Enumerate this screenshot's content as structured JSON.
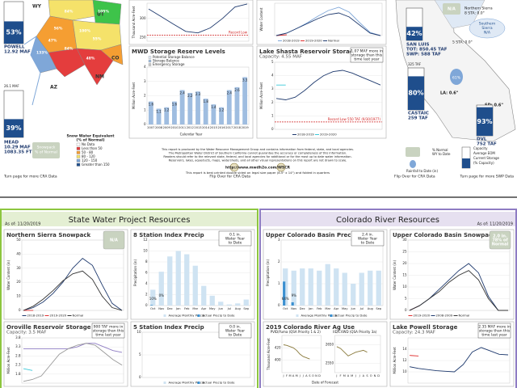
{
  "top": {
    "colorado": {
      "powell": {
        "pct": "53%",
        "name": "POWELL",
        "vol": "12.92 MAF"
      },
      "mead": {
        "cap": "26.1 MAF",
        "pct": "39%",
        "name": "MEAD",
        "vol": "10.29 MAF",
        "elev": "1083.35 FT"
      },
      "states": [
        "WY",
        "UT",
        "CO",
        "NM",
        "AZ"
      ],
      "basin_pcts": [
        "84%",
        "105%",
        "56%",
        "47%",
        "100%",
        "55%",
        "133%",
        "84%",
        "48%",
        "86%"
      ],
      "badge": [
        "Snowpack",
        "% of Normal"
      ],
      "legend_title": [
        "Snow Water Equivalent",
        "(% of Normal)"
      ],
      "legend_items": [
        "No Data",
        "Less than 50",
        "50 - 80",
        "80 - 120",
        "120 - 150",
        "Greater than 150"
      ],
      "footer": "Turn page for more CRA Data"
    },
    "panels": [
      {
        "ylabel": "Thousand Acre-Feet",
        "ylim": [
          240,
          340
        ],
        "yticks": [
          250,
          300
        ],
        "series": [
          {
            "color": "#1f3a6e",
            "values": [
              325,
              305,
              285,
              266,
              262,
              275,
              300,
              330,
              338
            ]
          }
        ],
        "record": {
          "label": "Record Low",
          "value": 256
        }
      },
      {
        "ylabel": "Water Content",
        "ylim": [
          0,
          40
        ],
        "series": [
          {
            "name": "2018-2019",
            "color": "#7fa7d8",
            "values": [
              0,
              3,
              9,
              16,
              24,
              31,
              35,
              29,
              16,
              4,
              0
            ]
          },
          {
            "name": "2019-2020",
            "color": "#e03030",
            "values": [
              0,
              1
            ]
          },
          {
            "name": "Normal",
            "color": "#1f3a6e",
            "values": [
              0,
              3,
              9,
              15,
              21,
              26,
              28,
              23,
              13,
              3,
              0
            ]
          }
        ]
      },
      {
        "title": "MWD Storage Reserve Levels",
        "legend_items": [
          {
            "name": "Potential Storage Balance",
            "color": "#e3ecf7"
          },
          {
            "name": "Storage Balance",
            "color": "#9fbde0"
          },
          {
            "name": "Emergency Storage",
            "color": "#c8c8c8"
          }
        ],
        "ylabel": "Million Acre-Feet",
        "xlabel": "Calendar Year",
        "ylim": [
          0,
          4
        ],
        "yticks": [
          0,
          1,
          2,
          3,
          4
        ],
        "categories": [
          "2007",
          "2008",
          "2009",
          "2010",
          "2011",
          "2012",
          "2013",
          "2014",
          "2015",
          "2016",
          "2017",
          "2018",
          "2019"
        ],
        "series": [
          {
            "kind": "bar",
            "color": "#9fbde0",
            "labels": true,
            "values": [
              1.6,
              1.1,
              1.2,
              1.6,
              2.4,
              2.2,
              2.3,
              1.8,
              1.4,
              1.2,
              2.4,
              2.6,
              3.3
            ]
          }
        ]
      },
      {
        "title": "Lake Shasta Reservoir Storage",
        "subtitle": "Capacity: 4.55 MAF",
        "note": [
          "1.07 MAF more in",
          "storage than this",
          "time last year"
        ],
        "ylabel": "Million Acre-Feet",
        "ylim": [
          0,
          5
        ],
        "yticks": [
          0,
          1,
          2,
          3,
          4,
          5
        ],
        "series": [
          {
            "name": "2018-2019",
            "color": "#1f3a6e",
            "values": [
              2.3,
              2.2,
              2.4,
              2.9,
              3.5,
              4.0,
              4.3,
              4.4,
              4.2,
              3.9,
              3.6,
              3.3
            ]
          },
          {
            "name": "2019-2020",
            "color": "#3cc8d8",
            "values": [
              3.3,
              3.3
            ]
          }
        ],
        "record": {
          "label": "Record Low 550 TAF (9/30/1977)",
          "value": 0.55
        }
      }
    ],
    "disclaimer_lines": [
      "This report is produced by the Water Resource Management Group and contains information from federal, state, and local agencies.",
      "The Metropolitan Water District of Southern California cannot guarantee the accuracy or completeness of this information.",
      "Readers should refer to the relevant state, federal, and local agencies for additional or for the most up to date water information.",
      "Reservoirs, lakes, aqueducts, maps, watersheds, and all other visual representations on this report are not drawn to scale."
    ],
    "url": "http://www.mwdh2o.com/WSCR",
    "print_note": "This report is best printed double sided on legal size paper (8.5\" x 14\") and folded in quarters",
    "flip_cra": "Flip Over for CRA Data",
    "california": {
      "nsierra": [
        "N/A",
        "Northern Sierra",
        "8 STA: 0.0\""
      ],
      "ssierra": [
        "Southern",
        "Sierra",
        "N/A",
        "5 STA: 0.0\""
      ],
      "sanluis": {
        "pct": "42%",
        "name": "SAN LUIS",
        "tot": "TOT: 850.45 TAF",
        "swp": "SWP: 588 TAF"
      },
      "castaic": {
        "cap": "325 TAF",
        "pct": "80%",
        "name": "CASTAIC",
        "vol": "259 TAF"
      },
      "dvl": {
        "pct": "93%",
        "name": "DVL",
        "vol": "752 TAF"
      },
      "la": "LA: 0.6\"",
      "sd": "SD: 0.6\"",
      "pct61": "61%",
      "legend": [
        "% Normal",
        "WY to Date",
        "Rainfall to Date (in)",
        "Capacity",
        "Average EOM",
        "Current Storage",
        "(% Capacity)"
      ],
      "flip_swp": "Flip Over for CRA Data",
      "footer": "Turn page for more SWP Data"
    }
  },
  "bottom": {
    "swp": {
      "title": "State Water Project Resources",
      "as_of": "As of: 11/20/2019",
      "panels": [
        {
          "title": "Northern Sierra Snowpack",
          "badge": [
            "N/A"
          ],
          "ylabel": "Water Content (in)",
          "ylim": [
            0,
            50
          ],
          "yticks": [
            0,
            10,
            20,
            30,
            40,
            50
          ],
          "series": [
            {
              "name": "2018-2019",
              "color": "#1f3a6e",
              "values": [
                0,
                2,
                6,
                12,
                20,
                30,
                37,
                32,
                18,
                5,
                0
              ]
            },
            {
              "name": "2019-2020",
              "color": "#e03030",
              "values": [
                0,
                0
              ]
            },
            {
              "name": "Normal",
              "color": "#333333",
              "values": [
                0,
                3,
                8,
                14,
                21,
                26,
                28,
                22,
                10,
                2,
                0
              ]
            }
          ]
        },
        {
          "title": "8 Station Index Precip",
          "note": [
            "0.1 in.",
            "Water Year",
            "to Date"
          ],
          "ylabel": "Precipitation (in)",
          "ylim": [
            0,
            12
          ],
          "yticks": [
            0,
            2,
            4,
            6,
            8,
            10,
            12
          ],
          "categories": [
            "Oct",
            "Nov",
            "Dec",
            "Jan",
            "Feb",
            "Mar",
            "Apr",
            "May",
            "Jun",
            "Jul",
            "Aug",
            "Sep"
          ],
          "pct_labels": [
            "10%",
            "0%"
          ],
          "series": [
            {
              "name": "Average Monthly Precip",
              "kind": "bar",
              "color": "#cfe3f2",
              "values": [
                2.9,
                6.2,
                9.0,
                10.0,
                9.4,
                7.3,
                3.6,
                1.8,
                0.7,
                0.2,
                0.4,
                1.1
              ]
            },
            {
              "name": "Actual Precip to Date",
              "kind": "bar",
              "color": "#3a8fd0",
              "values": [
                0.1,
                0
              ]
            }
          ]
        },
        {
          "title": "Oroville Reservoir Storage",
          "subtitle": "Capacity: 3.5 MAF",
          "note": [
            "900 TAF more in",
            "storage than this",
            "time last year"
          ],
          "ylabel": "Million Acre-Feet",
          "ylim": [
            1.3,
            3.8
          ],
          "yticks": [
            1.8,
            2.3,
            2.8,
            3.3,
            3.8
          ],
          "series": [
            {
              "color": "#8e7cc3",
              "values": [
                3.2,
                3.2,
                3.2,
                3.2,
                3.2,
                3.2,
                3.3,
                3.5,
                3.5,
                3.3,
                3.1,
                3.0
              ]
            },
            {
              "color": "#999999",
              "values": [
                1.4,
                1.5,
                1.7,
                2.3,
                2.9,
                3.2,
                3.4,
                3.5,
                3.4,
                3.0,
                2.6,
                2.3
              ]
            },
            {
              "color": "#3cc8d8",
              "values": [
                2.1,
                2.0
              ]
            }
          ]
        },
        {
          "title": "5 Station Index Precip",
          "note": [
            "0.0 in.",
            "Water Year",
            "to Date"
          ],
          "ylim": [
            0,
            10
          ],
          "yticks": [
            0,
            5,
            10
          ],
          "series": [
            {
              "name": "Average Monthly Precip",
              "kind": "bar",
              "color": "#cfe3f2",
              "values": [
                1.6,
                3.7,
                6.1,
                7.5,
                7.0,
                5.9,
                3.0,
                1.3,
                0.4,
                0.1,
                0.1,
                0.6
              ]
            },
            {
              "name": "Actual Precip to Date",
              "kind": "bar",
              "color": "#3a8fd0",
              "values": [
                0,
                0
              ]
            }
          ]
        }
      ]
    },
    "cra": {
      "title": "Colorado River Resources",
      "as_of": "As of: 11/20/2019",
      "panels": [
        {
          "title": "Upper Colorado Basin Precip",
          "note": [
            "2.4 in.",
            "Water Year",
            "to Date"
          ],
          "ylabel": "Precipitation (in)",
          "ylim": [
            0,
            3
          ],
          "yticks": [
            0,
            1,
            2,
            3
          ],
          "categories": [
            "Oct",
            "Nov",
            "Dec",
            "Jan",
            "Feb",
            "Mar",
            "Apr",
            "May",
            "Jun",
            "Jul",
            "Aug",
            "Sep"
          ],
          "pct_labels": [
            "64%",
            "9%"
          ],
          "series": [
            {
              "name": "Average Monthly Precip",
              "kind": "bar",
              "color": "#cfe3f2",
              "values": [
                1.7,
                1.6,
                1.7,
                1.7,
                1.6,
                1.9,
                1.7,
                1.5,
                1.0,
                1.5,
                1.6,
                1.6
              ]
            },
            {
              "name": "Actual Precip to Date",
              "kind": "bar",
              "color": "#3a8fd0",
              "values": [
                1.1,
                0.15
              ]
            }
          ]
        },
        {
          "title": "Upper Colorado Basin Snowpack",
          "badge": [
            "2.0 in.",
            "78% of",
            "Normal"
          ],
          "ylabel": "Water Content (in)",
          "ylim": [
            0,
            30
          ],
          "yticks": [
            0,
            5,
            10,
            15,
            20,
            25,
            30
          ],
          "series": [
            {
              "name": "2019-2020",
              "color": "#e03030",
              "values": [
                0,
                2
              ]
            },
            {
              "name": "2008-2009",
              "color": "#1f3a6e",
              "values": [
                0,
                2,
                5,
                9,
                13,
                17,
                20,
                16,
                6,
                0,
                0
              ]
            },
            {
              "name": "Normal",
              "color": "#333333",
              "values": [
                0,
                2,
                5,
                8,
                12,
                15,
                17,
                13,
                5,
                0,
                0
              ]
            }
          ]
        },
        {
          "title": "2019 Colorado River Ag Use",
          "xlabel": "Date of Forecast",
          "charts": [
            {
              "subtitle": "PVID/Yuma (QSA Priority 1 & 2)",
              "ylabel": "Thousand Acre-Feet",
              "ylim": [
                380,
                440
              ],
              "yticks": [
                400,
                420
              ],
              "categories": [
                "J",
                "F",
                "M",
                "A",
                "M",
                "J",
                "J",
                "A",
                "S",
                "O",
                "N",
                "D"
              ],
              "series": [
                {
                  "color": "#8a7a3c",
                  "values": [
                    425,
                    424,
                    422,
                    420,
                    416,
                    410,
                    406,
                    404,
                    402,
                    null,
                    null,
                    null
                  ]
                }
              ]
            },
            {
              "subtitle": "IID/CVWD (QSA Priority 3a)",
              "ylim": [
                2500,
                2700
              ],
              "yticks": [
                2550,
                2650
              ],
              "categories": [
                "J",
                "F",
                "M",
                "A",
                "M",
                "J",
                "J",
                "A",
                "S",
                "O",
                "N",
                "D"
              ],
              "series": [
                {
                  "color": "#8a7a3c",
                  "values": [
                    2640,
                    2630,
                    2610,
                    2590,
                    2600,
                    2610,
                    2615,
                    2620,
                    2610,
                    null,
                    null,
                    null
                  ]
                }
              ]
            }
          ]
        },
        {
          "title": "Lake Powell Storage",
          "subtitle": "Capacity: 24.3 MAF",
          "note": [
            "2.35 MAF more in",
            "storage than this",
            "time last year"
          ],
          "ylabel": "Million Acre-Feet",
          "ylim": [
            8,
            16
          ],
          "yticks": [
            10,
            12,
            14
          ],
          "series": [
            {
              "color": "#1f3a6e",
              "values": [
                10.9,
                10.6,
                10.4,
                10.2,
                10.1,
                10.0,
                11.3,
                13.5,
                14.3,
                13.7,
                13.1,
                13.0
              ]
            },
            {
              "color": "#e03030",
              "values": [
                12.9,
                12.8
              ]
            }
          ]
        }
      ]
    }
  }
}
